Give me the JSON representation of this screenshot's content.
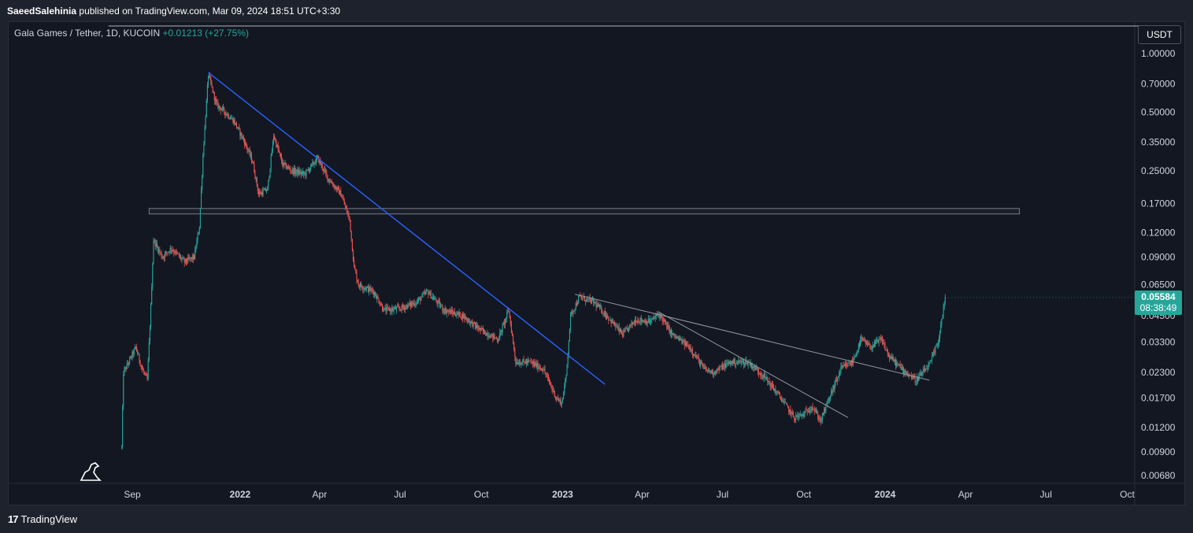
{
  "header": {
    "author": "SaeedSalehinia",
    "published_text": "published on TradingView.com, Mar 09, 2024 18:51 UTC+3:30"
  },
  "symbol": {
    "name": "Gala Games / Tether, 1D, KUCOIN",
    "change": "+0.01213 (+27.75%)"
  },
  "currency_button": "USDT",
  "last_price": {
    "price": "0.05584",
    "countdown": "08:38:49"
  },
  "footer": {
    "logo_text": "TradingView",
    "logo_mark": "17"
  },
  "colors": {
    "background": "#131722",
    "up": "#26a69a",
    "down": "#ef5350",
    "trendline_blue": "#2962ff",
    "trendline_gray": "#9598a1"
  },
  "chart_data": {
    "type": "candlestick",
    "y_scale": "log",
    "y_ticks": [
      "1.00000",
      "0.70000",
      "0.50000",
      "0.35000",
      "0.25000",
      "0.17000",
      "0.12000",
      "0.09000",
      "0.06500",
      "0.04500",
      "0.03300",
      "0.02300",
      "0.01700",
      "0.01200",
      "0.00900",
      "0.00680"
    ],
    "x_ticks": [
      {
        "label": "Sep",
        "date": "2021-09-01",
        "bold": false
      },
      {
        "label": "2022",
        "date": "2022-01-01",
        "bold": true
      },
      {
        "label": "Apr",
        "date": "2022-04-01",
        "bold": false
      },
      {
        "label": "Jul",
        "date": "2022-07-01",
        "bold": false
      },
      {
        "label": "Oct",
        "date": "2022-10-01",
        "bold": false
      },
      {
        "label": "2023",
        "date": "2023-01-01",
        "bold": true
      },
      {
        "label": "Apr",
        "date": "2023-04-01",
        "bold": false
      },
      {
        "label": "Jul",
        "date": "2023-07-01",
        "bold": false
      },
      {
        "label": "Oct",
        "date": "2023-10-01",
        "bold": false
      },
      {
        "label": "2024",
        "date": "2024-01-01",
        "bold": true
      },
      {
        "label": "Apr",
        "date": "2024-04-01",
        "bold": false
      },
      {
        "label": "Jul",
        "date": "2024-07-01",
        "bold": false
      },
      {
        "label": "Oct",
        "date": "2024-10-01",
        "bold": false
      }
    ],
    "price_path": [
      {
        "date": "2021-08-20",
        "close": 0.0095
      },
      {
        "date": "2021-08-22",
        "close": 0.023
      },
      {
        "date": "2021-08-28",
        "close": 0.026
      },
      {
        "date": "2021-09-05",
        "close": 0.031
      },
      {
        "date": "2021-09-12",
        "close": 0.024
      },
      {
        "date": "2021-09-18",
        "close": 0.021
      },
      {
        "date": "2021-09-22",
        "close": 0.05
      },
      {
        "date": "2021-09-25",
        "close": 0.11
      },
      {
        "date": "2021-10-05",
        "close": 0.09
      },
      {
        "date": "2021-10-15",
        "close": 0.1
      },
      {
        "date": "2021-10-30",
        "close": 0.085
      },
      {
        "date": "2021-11-10",
        "close": 0.09
      },
      {
        "date": "2021-11-16",
        "close": 0.13
      },
      {
        "date": "2021-11-20",
        "close": 0.3
      },
      {
        "date": "2021-11-26",
        "close": 0.78
      },
      {
        "date": "2021-12-05",
        "close": 0.55
      },
      {
        "date": "2021-12-15",
        "close": 0.5
      },
      {
        "date": "2021-12-25",
        "close": 0.45
      },
      {
        "date": "2022-01-05",
        "close": 0.36
      },
      {
        "date": "2022-01-15",
        "close": 0.28
      },
      {
        "date": "2022-01-22",
        "close": 0.19
      },
      {
        "date": "2022-02-01",
        "close": 0.2
      },
      {
        "date": "2022-02-08",
        "close": 0.38
      },
      {
        "date": "2022-02-18",
        "close": 0.27
      },
      {
        "date": "2022-03-01",
        "close": 0.25
      },
      {
        "date": "2022-03-15",
        "close": 0.24
      },
      {
        "date": "2022-03-30",
        "close": 0.29
      },
      {
        "date": "2022-04-10",
        "close": 0.23
      },
      {
        "date": "2022-04-25",
        "close": 0.19
      },
      {
        "date": "2022-05-05",
        "close": 0.14
      },
      {
        "date": "2022-05-10",
        "close": 0.08
      },
      {
        "date": "2022-05-15",
        "close": 0.065
      },
      {
        "date": "2022-06-01",
        "close": 0.06
      },
      {
        "date": "2022-06-13",
        "close": 0.048
      },
      {
        "date": "2022-07-01",
        "close": 0.049
      },
      {
        "date": "2022-07-20",
        "close": 0.053
      },
      {
        "date": "2022-08-01",
        "close": 0.06
      },
      {
        "date": "2022-08-20",
        "close": 0.048
      },
      {
        "date": "2022-09-10",
        "close": 0.045
      },
      {
        "date": "2022-09-30",
        "close": 0.038
      },
      {
        "date": "2022-10-20",
        "close": 0.034
      },
      {
        "date": "2022-11-01",
        "close": 0.048
      },
      {
        "date": "2022-11-09",
        "close": 0.026
      },
      {
        "date": "2022-11-25",
        "close": 0.026
      },
      {
        "date": "2022-12-10",
        "close": 0.024
      },
      {
        "date": "2022-12-25",
        "close": 0.017
      },
      {
        "date": "2022-12-31",
        "close": 0.016
      },
      {
        "date": "2023-01-05",
        "close": 0.022
      },
      {
        "date": "2023-01-10",
        "close": 0.045
      },
      {
        "date": "2023-01-20",
        "close": 0.056
      },
      {
        "date": "2023-02-05",
        "close": 0.053
      },
      {
        "date": "2023-02-20",
        "close": 0.045
      },
      {
        "date": "2023-03-10",
        "close": 0.036
      },
      {
        "date": "2023-03-25",
        "close": 0.043
      },
      {
        "date": "2023-04-10",
        "close": 0.042
      },
      {
        "date": "2023-04-20",
        "close": 0.046
      },
      {
        "date": "2023-05-05",
        "close": 0.036
      },
      {
        "date": "2023-05-25",
        "close": 0.031
      },
      {
        "date": "2023-06-10",
        "close": 0.024
      },
      {
        "date": "2023-06-20",
        "close": 0.023
      },
      {
        "date": "2023-07-10",
        "close": 0.026
      },
      {
        "date": "2023-07-30",
        "close": 0.026
      },
      {
        "date": "2023-08-17",
        "close": 0.022
      },
      {
        "date": "2023-09-05",
        "close": 0.017
      },
      {
        "date": "2023-09-20",
        "close": 0.0135
      },
      {
        "date": "2023-10-01",
        "close": 0.014
      },
      {
        "date": "2023-10-10",
        "close": 0.0155
      },
      {
        "date": "2023-10-20",
        "close": 0.013
      },
      {
        "date": "2023-11-01",
        "close": 0.018
      },
      {
        "date": "2023-11-12",
        "close": 0.024
      },
      {
        "date": "2023-11-25",
        "close": 0.026
      },
      {
        "date": "2023-12-05",
        "close": 0.034
      },
      {
        "date": "2023-12-15",
        "close": 0.031
      },
      {
        "date": "2023-12-28",
        "close": 0.034
      },
      {
        "date": "2024-01-05",
        "close": 0.028
      },
      {
        "date": "2024-01-20",
        "close": 0.024
      },
      {
        "date": "2024-02-05",
        "close": 0.021
      },
      {
        "date": "2024-02-20",
        "close": 0.025
      },
      {
        "date": "2024-03-01",
        "close": 0.033
      },
      {
        "date": "2024-03-09",
        "close": 0.05584
      }
    ],
    "trendlines": [
      {
        "color": "blue",
        "from": {
          "date": "2021-11-26",
          "price": 0.8
        },
        "to": {
          "date": "2023-02-18",
          "price": 0.02
        }
      },
      {
        "color": "gray",
        "from": {
          "date": "2023-01-15",
          "price": 0.058
        },
        "to": {
          "date": "2024-02-20",
          "price": 0.021
        }
      },
      {
        "color": "gray",
        "from": {
          "date": "2023-04-20",
          "price": 0.047
        },
        "to": {
          "date": "2023-11-20",
          "price": 0.0135
        }
      }
    ],
    "zones": [
      {
        "type": "rectangle",
        "from": {
          "date": "2021-09-20",
          "price": 0.15
        },
        "to": {
          "date": "2024-06-01",
          "price": 0.16
        }
      }
    ],
    "top_line": {
      "from": "2021-08-05",
      "to": "2024-11-25",
      "price": 1.15
    }
  }
}
